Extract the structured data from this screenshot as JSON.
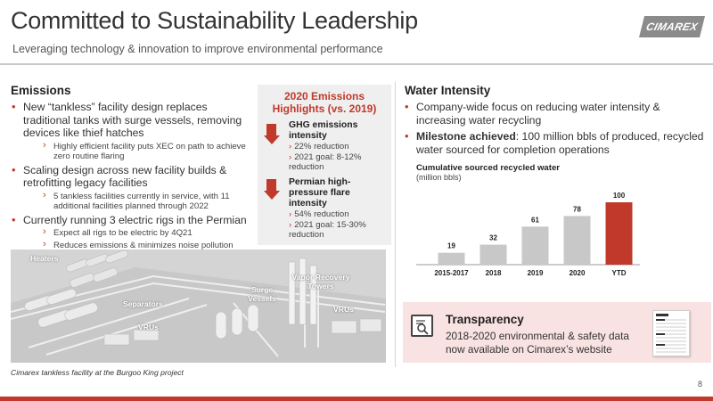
{
  "header": {
    "title": "Committed to Sustainability Leadership",
    "subtitle": "Leveraging technology & innovation to improve environmental performance",
    "logo_text": "CIMAREX"
  },
  "emissions": {
    "title": "Emissions",
    "bullets": [
      {
        "text": "New “tankless” facility design replaces traditional tanks with surge vessels, removing devices like thief hatches",
        "subs": [
          "Highly efficient facility puts XEC on path to achieve zero routine flaring"
        ]
      },
      {
        "text": "Scaling design across new facility builds & retrofitting legacy facilities",
        "subs": [
          "5 tankless facilities currently in service, with 11 additional facilities planned through 2022"
        ]
      },
      {
        "text": "Currently running 3 electric rigs in the Permian",
        "subs": [
          "Expect all rigs to be electric by 4Q21",
          "Reduces emissions & minimizes noise pollution"
        ]
      }
    ]
  },
  "highlights": {
    "title_line1": "2020 Emissions",
    "title_line2": "Highlights (vs. 2019)",
    "items": [
      {
        "title": "GHG emissions intensity",
        "subs": [
          "22% reduction",
          "2021 goal: 8-12% reduction"
        ]
      },
      {
        "title": "Permian high-pressure flare intensity",
        "subs": [
          "54% reduction",
          "2021 goal: 15-30% reduction"
        ]
      }
    ]
  },
  "photo": {
    "labels": {
      "heaters": "Heaters",
      "separators": "Separators",
      "surge": "Surge Vessels",
      "vapor": "Vapor Recovery Towers",
      "vrus_right": "VRUs",
      "vrus_left": "VRUs"
    },
    "caption": "Cimarex tankless facility at the Burgoo King project"
  },
  "water": {
    "title": "Water Intensity",
    "bullet1": "Company-wide focus on reducing water intensity & increasing water recycling",
    "bullet2_bold": "Milestone achieved",
    "bullet2_rest": ": 100 million bbls of produced, recycled water sourced for completion operations"
  },
  "chart_data": {
    "type": "bar",
    "title": "Cumulative sourced recycled water",
    "subtitle": "(million bbls)",
    "categories": [
      "2015-2017",
      "2018",
      "2019",
      "2020",
      "YTD"
    ],
    "values": [
      19,
      32,
      61,
      78,
      100
    ],
    "colors": [
      "#c8c8c8",
      "#c8c8c8",
      "#c8c8c8",
      "#c8c8c8",
      "#c0392b"
    ],
    "ylim": [
      0,
      100
    ],
    "grid": false
  },
  "transparency": {
    "title": "Transparency",
    "body": "2018-2020 environmental & safety data now available on Cimarex’s website"
  },
  "page_number": "8",
  "colors": {
    "accent": "#c0392b",
    "highlight_bg": "#efefef",
    "transparency_bg": "#f9e2e2"
  }
}
